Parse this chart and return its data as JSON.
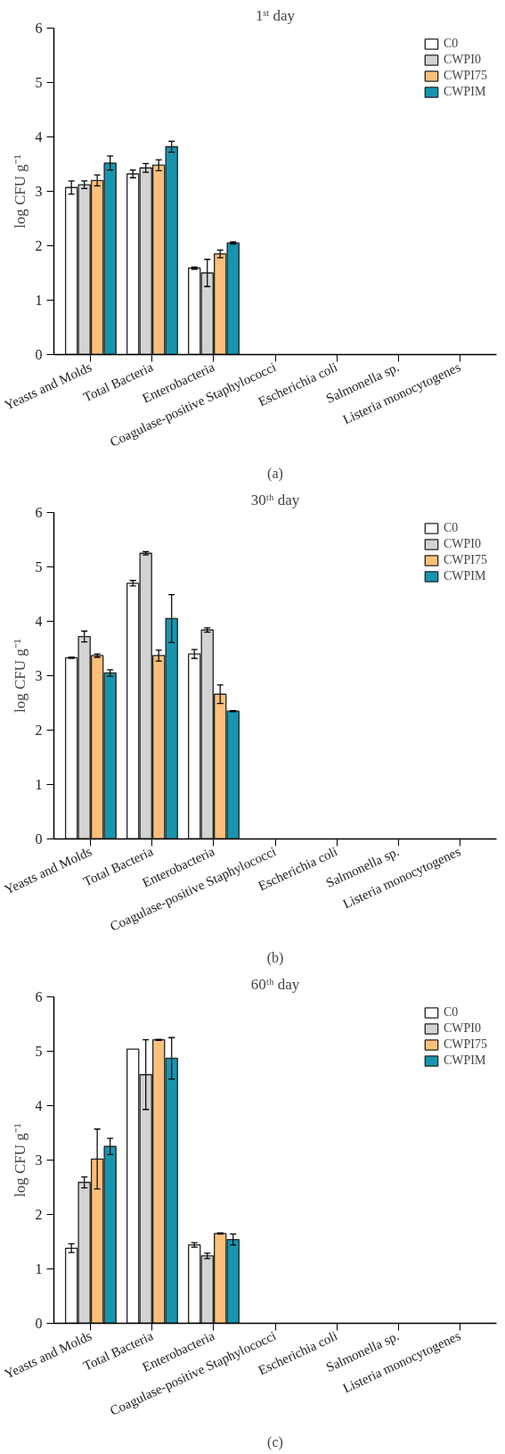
{
  "chart_data": [
    {
      "type": "bar",
      "title": "1ˢᵗ day",
      "ylabel": "log CFU g⁻¹",
      "categories": [
        "Yeasts and Molds",
        "Total Bacteria",
        "Enterobacteria",
        "Coagulase-positive Staphylococci",
        "Escherichia coli",
        "Salmonella sp.",
        "Listeria monocytogenes"
      ],
      "ylim": [
        0,
        6
      ],
      "yticks": [
        0,
        1,
        2,
        3,
        4,
        5,
        6
      ],
      "grid": false,
      "legend": "top right",
      "annotations": [
        "(a)"
      ],
      "series": [
        {
          "name": "C0",
          "color": "#ffffff",
          "values": [
            3.07,
            3.32,
            1.59,
            null,
            null,
            null,
            null
          ],
          "errors": [
            0.12,
            0.07,
            0.02,
            null,
            null,
            null,
            null
          ]
        },
        {
          "name": "CWPI0",
          "color": "#d3d3d3",
          "values": [
            3.12,
            3.43,
            1.5,
            null,
            null,
            null,
            null
          ],
          "errors": [
            0.07,
            0.08,
            0.25,
            null,
            null,
            null,
            null
          ]
        },
        {
          "name": "CWPI75",
          "color": "#fdc07a",
          "values": [
            3.2,
            3.48,
            1.85,
            null,
            null,
            null,
            null
          ],
          "errors": [
            0.1,
            0.1,
            0.07,
            null,
            null,
            null,
            null
          ]
        },
        {
          "name": "CWPIM",
          "color": "#1795ae",
          "values": [
            3.52,
            3.82,
            2.05,
            null,
            null,
            null,
            null
          ],
          "errors": [
            0.13,
            0.1,
            0.02,
            null,
            null,
            null,
            null
          ]
        }
      ]
    },
    {
      "type": "bar",
      "title": "30ᵗʰ day",
      "ylabel": "log CFU g⁻¹",
      "categories": [
        "Yeasts and Molds",
        "Total Bacteria",
        "Enterobacteria",
        "Coagulase-positive Staphylococci",
        "Escherichia coli",
        "Salmonella sp.",
        "Listeria monocytogenes"
      ],
      "ylim": [
        0,
        6
      ],
      "yticks": [
        0,
        1,
        2,
        3,
        4,
        5,
        6
      ],
      "grid": false,
      "legend": "top right",
      "annotations": [
        "(b)"
      ],
      "series": [
        {
          "name": "C0",
          "color": "#ffffff",
          "values": [
            3.33,
            4.7,
            3.4,
            null,
            null,
            null,
            null
          ],
          "errors": [
            0.01,
            0.05,
            0.08,
            null,
            null,
            null,
            null
          ]
        },
        {
          "name": "CWPI0",
          "color": "#d3d3d3",
          "values": [
            3.72,
            5.25,
            3.84,
            null,
            null,
            null,
            null
          ],
          "errors": [
            0.1,
            0.03,
            0.04,
            null,
            null,
            null,
            null
          ]
        },
        {
          "name": "CWPI75",
          "color": "#fdc07a",
          "values": [
            3.37,
            3.37,
            2.66,
            null,
            null,
            null,
            null
          ],
          "errors": [
            0.03,
            0.1,
            0.17,
            null,
            null,
            null,
            null
          ]
        },
        {
          "name": "CWPIM",
          "color": "#1795ae",
          "values": [
            3.05,
            4.05,
            2.35,
            null,
            null,
            null,
            null
          ],
          "errors": [
            0.06,
            0.44,
            0.01,
            null,
            null,
            null,
            null
          ]
        }
      ]
    },
    {
      "type": "bar",
      "title": "60ᵗʰ day",
      "ylabel": "log CFU g⁻¹",
      "categories": [
        "Yeasts and Molds",
        "Total Bacteria",
        "Enterobacteria",
        "Coagulase-positive Staphylococci",
        "Escherichia coli",
        "Salmonella sp.",
        "Listeria monocytogenes"
      ],
      "ylim": [
        0,
        6
      ],
      "yticks": [
        0,
        1,
        2,
        3,
        4,
        5,
        6
      ],
      "grid": false,
      "legend": "top right",
      "annotations": [
        "(c)"
      ],
      "series": [
        {
          "name": "C0",
          "color": "#ffffff",
          "values": [
            1.38,
            5.04,
            1.44,
            null,
            null,
            null,
            null
          ],
          "errors": [
            0.08,
            null,
            0.04,
            null,
            null,
            null,
            null
          ]
        },
        {
          "name": "CWPI0",
          "color": "#d3d3d3",
          "values": [
            2.59,
            4.57,
            1.24,
            null,
            null,
            null,
            null
          ],
          "errors": [
            0.1,
            0.64,
            0.05,
            null,
            null,
            null,
            null
          ]
        },
        {
          "name": "CWPI75",
          "color": "#fdc07a",
          "values": [
            3.02,
            5.21,
            1.65,
            null,
            null,
            null,
            null
          ],
          "errors": [
            0.55,
            0.01,
            0.01,
            null,
            null,
            null,
            null
          ]
        },
        {
          "name": "CWPIM",
          "color": "#1795ae",
          "values": [
            3.25,
            4.87,
            1.54,
            null,
            null,
            null,
            null
          ],
          "errors": [
            0.15,
            0.38,
            0.1,
            null,
            null,
            null,
            null
          ]
        }
      ]
    }
  ]
}
